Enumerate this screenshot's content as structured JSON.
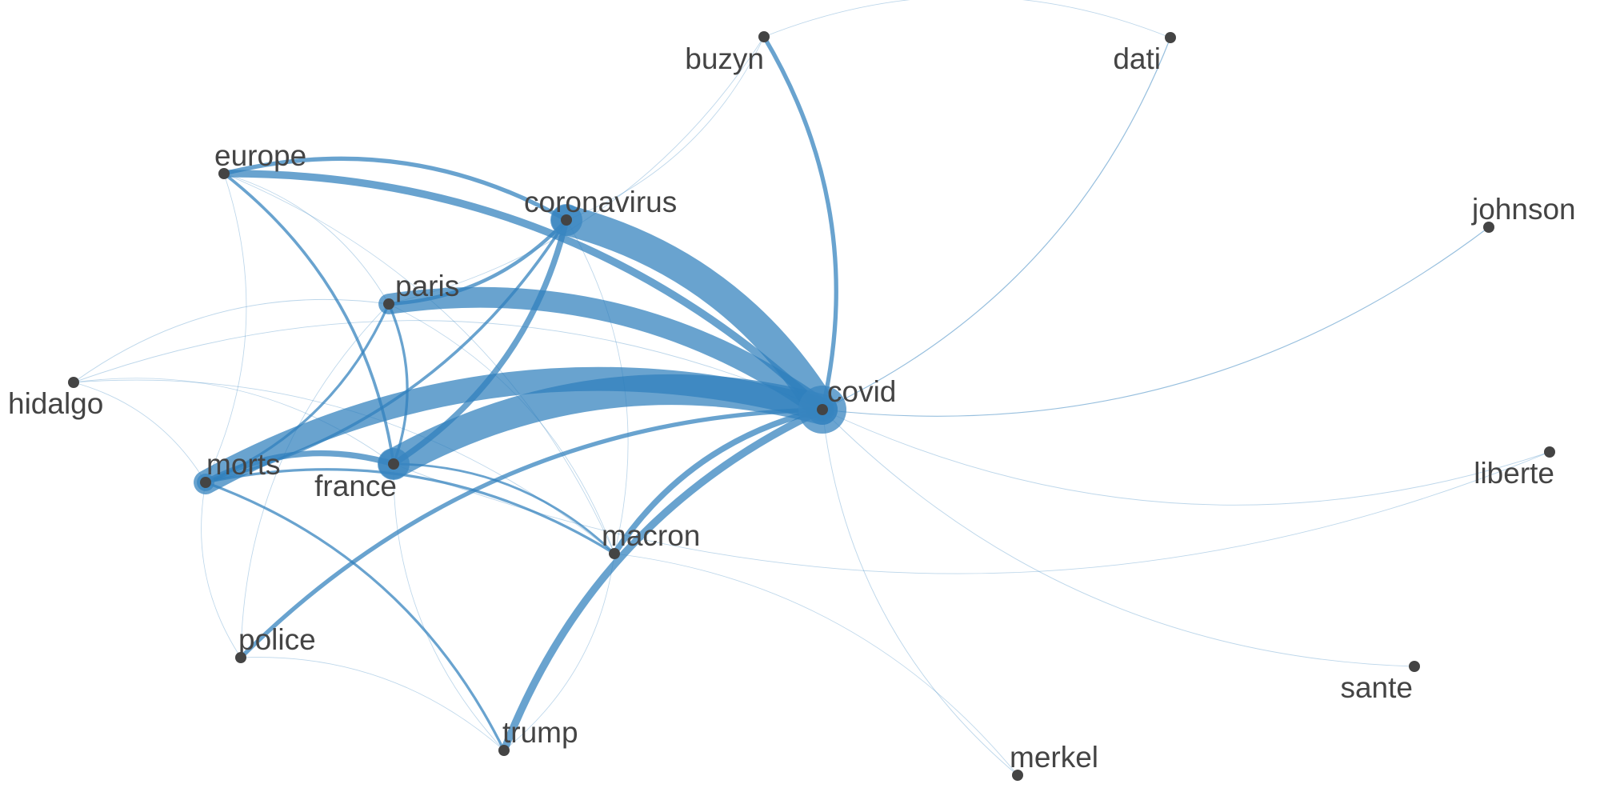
{
  "graph": {
    "edge_color": "#2f7fbd",
    "node_color": "#444444",
    "nodes": [
      {
        "id": "covid",
        "label": "covid",
        "halo": "large"
      },
      {
        "id": "coronavirus",
        "label": "coronavirus",
        "halo": "small"
      },
      {
        "id": "france",
        "label": "france",
        "halo": "small"
      },
      {
        "id": "morts",
        "label": "morts",
        "halo": "tiny"
      },
      {
        "id": "paris",
        "label": "paris",
        "halo": "none"
      },
      {
        "id": "europe",
        "label": "europe",
        "halo": "none"
      },
      {
        "id": "buzyn",
        "label": "buzyn",
        "halo": "none"
      },
      {
        "id": "dati",
        "label": "dati",
        "halo": "none"
      },
      {
        "id": "johnson",
        "label": "johnson",
        "halo": "none"
      },
      {
        "id": "hidalgo",
        "label": "hidalgo",
        "halo": "none"
      },
      {
        "id": "liberte",
        "label": "liberte",
        "halo": "none"
      },
      {
        "id": "macron",
        "label": "macron",
        "halo": "none"
      },
      {
        "id": "police",
        "label": "police",
        "halo": "none"
      },
      {
        "id": "sante",
        "label": "sante",
        "halo": "none"
      },
      {
        "id": "trump",
        "label": "trump",
        "halo": "none"
      },
      {
        "id": "merkel",
        "label": "merkel",
        "halo": "none"
      }
    ],
    "edges": [
      {
        "source": "coronavirus",
        "target": "covid",
        "weight": 10
      },
      {
        "source": "france",
        "target": "covid",
        "weight": 10
      },
      {
        "source": "morts",
        "target": "covid",
        "weight": 8
      },
      {
        "source": "paris",
        "target": "covid",
        "weight": 7
      },
      {
        "source": "trump",
        "target": "covid",
        "weight": 3
      },
      {
        "source": "europe",
        "target": "covid",
        "weight": 3
      },
      {
        "source": "coronavirus",
        "target": "france",
        "weight": 2.5
      },
      {
        "source": "morts",
        "target": "france",
        "weight": 2.5
      },
      {
        "source": "macron",
        "target": "covid",
        "weight": 2.5
      },
      {
        "source": "buzyn",
        "target": "covid",
        "weight": 2
      },
      {
        "source": "police",
        "target": "covid",
        "weight": 2
      },
      {
        "source": "europe",
        "target": "coronavirus",
        "weight": 2
      },
      {
        "source": "coronavirus",
        "target": "paris",
        "weight": 1.8
      },
      {
        "source": "europe",
        "target": "france",
        "weight": 1.6
      },
      {
        "source": "coronavirus",
        "target": "morts",
        "weight": 1.6
      },
      {
        "source": "paris",
        "target": "morts",
        "weight": 1.5
      },
      {
        "source": "paris",
        "target": "france",
        "weight": 1.5
      },
      {
        "source": "morts",
        "target": "macron",
        "weight": 1.5
      },
      {
        "source": "morts",
        "target": "trump",
        "weight": 1.5
      },
      {
        "source": "france",
        "target": "macron",
        "weight": 1.4
      },
      {
        "source": "dati",
        "target": "covid",
        "weight": 1
      },
      {
        "source": "johnson",
        "target": "covid",
        "weight": 0.8
      },
      {
        "source": "liberte",
        "target": "covid",
        "weight": 0.6
      },
      {
        "source": "sante",
        "target": "covid",
        "weight": 0.6
      },
      {
        "source": "merkel",
        "target": "covid",
        "weight": 0.6
      },
      {
        "source": "hidalgo",
        "target": "covid",
        "weight": 0.6
      },
      {
        "source": "hidalgo",
        "target": "paris",
        "weight": 0.6
      },
      {
        "source": "hidalgo",
        "target": "macron",
        "weight": 0.5
      },
      {
        "source": "hidalgo",
        "target": "morts",
        "weight": 0.5
      },
      {
        "source": "hidalgo",
        "target": "france",
        "weight": 0.5
      },
      {
        "source": "europe",
        "target": "morts",
        "weight": 0.5
      },
      {
        "source": "europe",
        "target": "macron",
        "weight": 0.5
      },
      {
        "source": "europe",
        "target": "paris",
        "weight": 0.5
      },
      {
        "source": "buzyn",
        "target": "coronavirus",
        "weight": 0.5
      },
      {
        "source": "buzyn",
        "target": "paris",
        "weight": 0.5
      },
      {
        "source": "buzyn",
        "target": "dati",
        "weight": 0.5
      },
      {
        "source": "coronavirus",
        "target": "macron",
        "weight": 0.5
      },
      {
        "source": "paris",
        "target": "macron",
        "weight": 0.5
      },
      {
        "source": "macron",
        "target": "merkel",
        "weight": 0.5
      },
      {
        "source": "macron",
        "target": "trump",
        "weight": 0.5
      },
      {
        "source": "police",
        "target": "morts",
        "weight": 0.5
      },
      {
        "source": "police",
        "target": "paris",
        "weight": 0.5
      },
      {
        "source": "police",
        "target": "trump",
        "weight": 0.5
      },
      {
        "source": "trump",
        "target": "france",
        "weight": 0.5
      },
      {
        "source": "liberte",
        "target": "france",
        "weight": 0.5
      }
    ]
  }
}
